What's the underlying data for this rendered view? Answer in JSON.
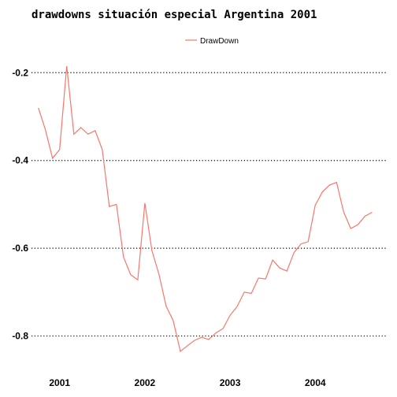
{
  "chart_data": {
    "type": "line",
    "title": "drawdowns situación especial Argentina 2001",
    "xlabel": "",
    "ylabel": "",
    "legend": {
      "placement": "top-center",
      "entries": [
        "DrawDown"
      ]
    },
    "grid": {
      "y": true,
      "x": false,
      "style": "dotted"
    },
    "xlim": [
      2000.67,
      2004.83
    ],
    "ylim": [
      -0.86,
      -0.16
    ],
    "x_ticks": [
      {
        "value": 2001,
        "label": "2001"
      },
      {
        "value": 2002,
        "label": "2002"
      },
      {
        "value": 2003,
        "label": "2003"
      },
      {
        "value": 2004,
        "label": "2004"
      }
    ],
    "y_ticks": [
      {
        "value": -0.2,
        "label": "-0.2"
      },
      {
        "value": -0.4,
        "label": "-0.4"
      },
      {
        "value": -0.6,
        "label": "-0.6"
      },
      {
        "value": -0.8,
        "label": "-0.8"
      }
    ],
    "series": [
      {
        "name": "DrawDown",
        "color": "#f8766d",
        "x": [
          2000.75,
          2000.833,
          2000.917,
          2001.0,
          2001.083,
          2001.167,
          2001.25,
          2001.333,
          2001.417,
          2001.5,
          2001.583,
          2001.667,
          2001.75,
          2001.833,
          2001.917,
          2002.0,
          2002.083,
          2002.167,
          2002.25,
          2002.333,
          2002.417,
          2002.5,
          2002.583,
          2002.667,
          2002.75,
          2002.833,
          2002.917,
          2003.0,
          2003.083,
          2003.167,
          2003.25,
          2003.333,
          2003.417,
          2003.5,
          2003.583,
          2003.667,
          2003.75,
          2003.833,
          2003.917,
          2004.0,
          2004.083,
          2004.167,
          2004.25,
          2004.333,
          2004.417,
          2004.5,
          2004.583,
          2004.667
        ],
        "values": [
          -0.28,
          -0.33,
          -0.395,
          -0.375,
          -0.185,
          -0.34,
          -0.325,
          -0.34,
          -0.332,
          -0.375,
          -0.505,
          -0.5,
          -0.62,
          -0.66,
          -0.672,
          -0.497,
          -0.605,
          -0.66,
          -0.732,
          -0.765,
          -0.835,
          -0.822,
          -0.81,
          -0.803,
          -0.808,
          -0.793,
          -0.783,
          -0.753,
          -0.733,
          -0.7,
          -0.703,
          -0.668,
          -0.67,
          -0.627,
          -0.645,
          -0.652,
          -0.61,
          -0.59,
          -0.585,
          -0.502,
          -0.472,
          -0.456,
          -0.45,
          -0.517,
          -0.555,
          -0.546,
          -0.527,
          -0.518
        ]
      }
    ]
  }
}
